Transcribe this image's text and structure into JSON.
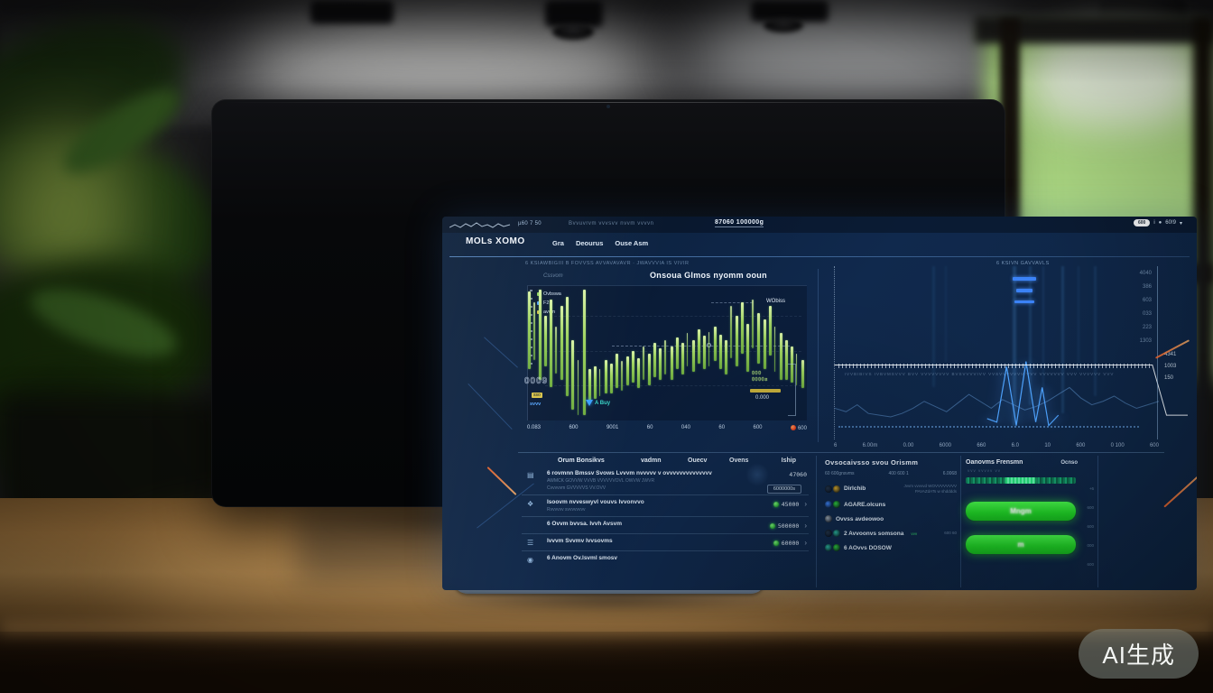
{
  "scene": {
    "watermark_label": "AI生成"
  },
  "screen": {
    "statusbar": {
      "metric": "µ60 7 50",
      "ticker": "Bvvuvrvm vvvsvv nvvm vvvvn",
      "highlight": "87060 100000g",
      "badge": "600",
      "info_icon": "i",
      "dot_icon": "●",
      "right_value": "60!9",
      "caret_icon": "▾"
    },
    "nav": {
      "logo": "MOLs XOMO",
      "items": [
        "Gra",
        "Deourus",
        "Ouse Asm"
      ]
    },
    "breadcrumbs": {
      "left": "6 KSIAWBIGIII B FOVVSS AVVAVAVAVR · JWAVVVIA IS VIVIR",
      "right": "6 KSIVN GAVVAVLS"
    },
    "left_chart": {
      "eyebrow": "Cssvom",
      "title": "Onsoua Glmos nyomm ooun",
      "legend": [
        {
          "label": "Ovbswa",
          "color": "#8fd35f"
        },
        {
          "label": "F2",
          "color": "#4ea3ff"
        },
        {
          "label": "avvm",
          "color": "#d4c04a"
        }
      ],
      "threshold_label": "WObiss",
      "outline_note": "0009",
      "yellow_note": "sso",
      "blue_note": "svvv",
      "buy_marker": "A Buy",
      "target_note_line1": "000",
      "target_note_line2": "0000s",
      "target_value": "0.000",
      "flame_value": "600"
    },
    "right_chart": {
      "tick_caption": "IVVBIBIVS IVBVMSVVV BVV VVVVVVVV BVSVVVVIVV VVSVVVVVVV VVV VVVVVVV VVV VVVVVV VVV",
      "drop_labels": [
        "4341",
        "1003",
        "150"
      ]
    },
    "positions_table": {
      "headers": [
        "Orum Bonsikvs",
        "vadmn",
        "Ouecv",
        "Ovens",
        "Iship"
      ],
      "rows": [
        {
          "icon": "document-icon",
          "glyph": "▤",
          "title": "6 rovmnn Bmssv Svows Lvvvm nvvvvv v ovvvvvvvvvvvvvv",
          "value": "47060",
          "subs": [
            "AWMCK GOVVW VVVB VVVVVVOVL OWVW JWVR",
            "Cvvvvvm GVVVVVS VV.OVV"
          ],
          "box": "6000000s"
        },
        {
          "icon": "shield-icon",
          "glyph": "❖",
          "title": "Isoovm nvveswyvl vouvs Ivvonvvo",
          "subs": [
            "Rvvvvvv svvvvvvvv"
          ],
          "value": "45000",
          "status": true,
          "chevron": "›"
        },
        {
          "icon": "",
          "glyph": "",
          "title": "6 Ovvm bvvsa. Ivvh Avsvm",
          "value": "500000",
          "status": true,
          "chevron": "›"
        },
        {
          "icon": "list-icon",
          "glyph": "☰",
          "title": "Ivvvm Svvmv Ivvsovms",
          "value": "60000",
          "status": true,
          "chevron": "›"
        },
        {
          "icon": "user-icon",
          "glyph": "◉",
          "title": "6 Anovm Ov.lsvml smosv"
        }
      ]
    },
    "assets_table": {
      "title": "Ovsocaivsso svou Orismm",
      "columns": [
        "60 600gnsvms",
        "400 600 1",
        "6.0068"
      ],
      "rows": [
        {
          "coins": [
            "#23344a",
            "#d4a72c"
          ],
          "name": "Dirlchib",
          "note": "Jvvm vvvvvd WOVVVVVVVV",
          "note2": "PAVAZdATs w shdddds"
        },
        {
          "coins": [
            "#3b82f6",
            "#2ecc40"
          ],
          "name": "AGARE.olcuns"
        },
        {
          "coins": [
            "#9aa7b5"
          ],
          "name": "Ovvss avdeowoo"
        },
        {
          "coins": [
            "#23344a",
            "#2bb5a0"
          ],
          "name": "2 Avvoonvs somsona",
          "tag": "vvv",
          "note": "600 60"
        },
        {
          "coins": [
            "#2bb5a0",
            "#2ecc40"
          ],
          "name": "6 AOvvs DOSOW"
        }
      ]
    },
    "action_panel": {
      "title": "Oanovms Frensmn",
      "corner": "Ocnso",
      "note": "vvv vvvvv vv",
      "buttons": [
        "Mngm",
        "m"
      ],
      "side_values": [
        "+6",
        "600",
        "600",
        "000",
        "600"
      ]
    }
  },
  "chart_data": [
    {
      "type": "bar",
      "title": "Onsoua Glmos nyomm ooun",
      "legend": [
        "Ovbswa",
        "F2",
        "avvm"
      ],
      "legend_position": "top-left",
      "x_labels": [
        "0.083",
        "600",
        "9001",
        "60",
        "040",
        "60",
        "600"
      ],
      "highs": [
        96,
        88,
        97,
        78,
        90,
        70,
        85,
        92,
        60,
        45,
        97,
        38,
        40,
        38,
        45,
        42,
        50,
        44,
        48,
        52,
        46,
        55,
        50,
        58,
        54,
        60,
        55,
        62,
        58,
        65,
        60,
        68,
        63,
        66,
        70,
        64,
        60,
        85,
        78,
        88,
        72,
        90,
        80,
        75,
        85,
        70,
        65,
        60,
        55,
        50,
        45
      ],
      "lows": [
        38,
        45,
        30,
        40,
        25,
        35,
        30,
        18,
        8,
        4,
        4,
        14,
        16,
        18,
        20,
        20,
        24,
        22,
        26,
        28,
        24,
        30,
        26,
        32,
        30,
        34,
        30,
        38,
        34,
        40,
        36,
        42,
        38,
        40,
        44,
        38,
        34,
        46,
        40,
        50,
        36,
        54,
        42,
        38,
        48,
        36,
        30,
        30,
        28,
        26,
        24
      ],
      "color": "#9ed45f",
      "ylim": [
        0,
        100
      ],
      "grid": true
    },
    {
      "type": "line",
      "x_labels": [
        "6",
        "6.00m",
        "0.00",
        "6000",
        "660",
        "6.0",
        "10",
        "600",
        "0 100",
        "600"
      ],
      "y_labels": [
        "4040",
        "386",
        "603",
        "033",
        "223",
        "1303"
      ],
      "series": [
        {
          "name": "baseline-faint",
          "color": "rgba(110,170,235,0.45)",
          "values": [
            18,
            16,
            20,
            15,
            14,
            13,
            15,
            18,
            22,
            19,
            16,
            21,
            26,
            22,
            18,
            23,
            20,
            17,
            19,
            22,
            26,
            30,
            24,
            20,
            22,
            25,
            21,
            18,
            20,
            22
          ]
        },
        {
          "name": "signal-spike",
          "color": "#4ea3ff",
          "points": [
            [
              47,
              12
            ],
            [
              50,
              10
            ],
            [
              53,
              42
            ],
            [
              56,
              8
            ],
            [
              59,
              45
            ],
            [
              62,
              10
            ],
            [
              64,
              30
            ],
            [
              66,
              8
            ],
            [
              69,
              14
            ]
          ]
        },
        {
          "name": "level-drop",
          "color": "#e8eef5",
          "points": [
            [
              0,
              43
            ],
            [
              90,
              43
            ],
            [
              94,
              14
            ],
            [
              100,
              14
            ]
          ]
        }
      ],
      "columns": [
        {
          "x": 30,
          "w": 3,
          "h": 70,
          "o": 0.1
        },
        {
          "x": 34,
          "w": 2,
          "h": 55,
          "o": 0.08
        },
        {
          "x": 55,
          "w": 4,
          "h": 92,
          "o": 0.22
        },
        {
          "x": 60,
          "w": 3,
          "h": 80,
          "o": 0.16
        },
        {
          "x": 64,
          "w": 2.5,
          "h": 70,
          "o": 0.12
        },
        {
          "x": 70,
          "w": 3,
          "h": 85,
          "o": 0.18
        },
        {
          "x": 75,
          "w": 2,
          "h": 60,
          "o": 0.1
        },
        {
          "x": 80,
          "w": 2.5,
          "h": 75,
          "o": 0.12
        }
      ],
      "grid": false
    }
  ]
}
